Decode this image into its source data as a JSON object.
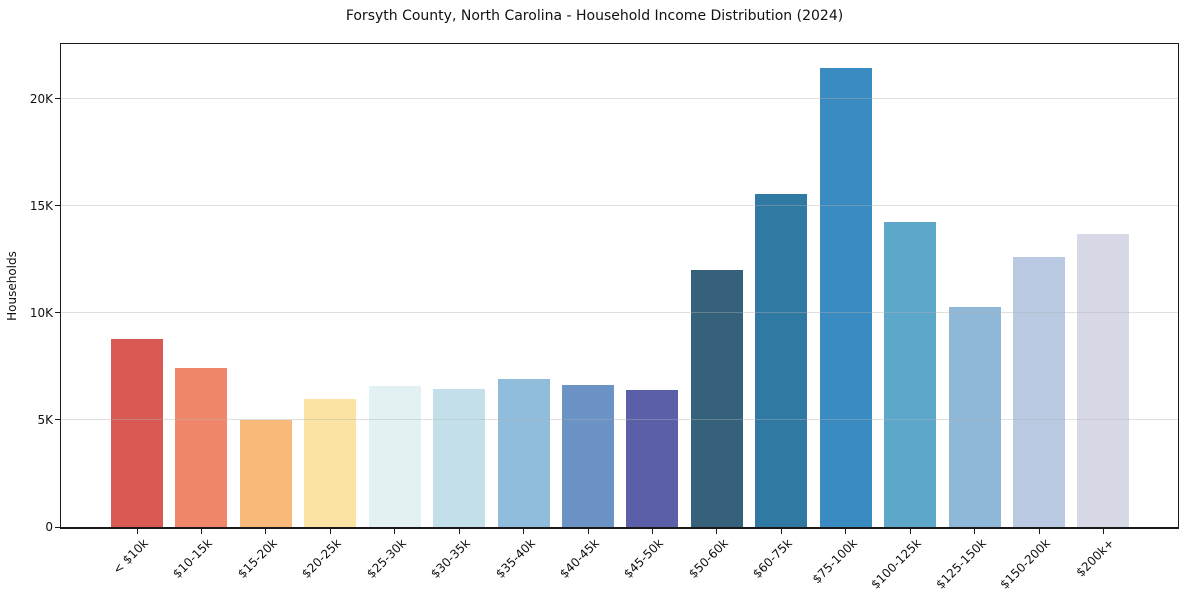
{
  "chart_data": {
    "type": "bar",
    "title": "Forsyth County, North Carolina - Household Income Distribution (2024)",
    "xlabel": "",
    "ylabel": "Households",
    "categories": [
      "< $10k",
      "$10-15k",
      "$15-20k",
      "$20-25k",
      "$25-30k",
      "$30-35k",
      "$35-40k",
      "$40-45k",
      "$45-50k",
      "$50-60k",
      "$60-75k",
      "$75-100k",
      "$100-125k",
      "$125-150k",
      "$150-200k",
      "$200k+"
    ],
    "values": [
      8800,
      7450,
      5000,
      6000,
      6600,
      6450,
      6900,
      6650,
      6400,
      12000,
      15550,
      21450,
      14250,
      10300,
      12600,
      13700
    ],
    "bar_colors": [
      "#d95a52",
      "#f0876a",
      "#f9b97a",
      "#fbe3a3",
      "#e4f1f3",
      "#c3e0ea",
      "#91bddc",
      "#6b93c6",
      "#5b5fa7",
      "#35617a",
      "#2f79a3",
      "#398bc2",
      "#5da7cb",
      "#8fb7d8",
      "#b8c9e1",
      "#d7d9e7"
    ],
    "ylim": [
      0,
      22570
    ],
    "yticks": [
      {
        "value": 0,
        "label": "0"
      },
      {
        "value": 5000,
        "label": "5K"
      },
      {
        "value": 10000,
        "label": "10K"
      },
      {
        "value": 15000,
        "label": "15K"
      },
      {
        "value": 20000,
        "label": "20K"
      }
    ],
    "grid": "horizontal",
    "grid_over_bars": true,
    "legend": "none",
    "colors": {
      "axis": "#1a1a1a",
      "text": "#111111",
      "gridline": "rgba(178,178,178,0.4)",
      "background": "#ffffff"
    }
  }
}
